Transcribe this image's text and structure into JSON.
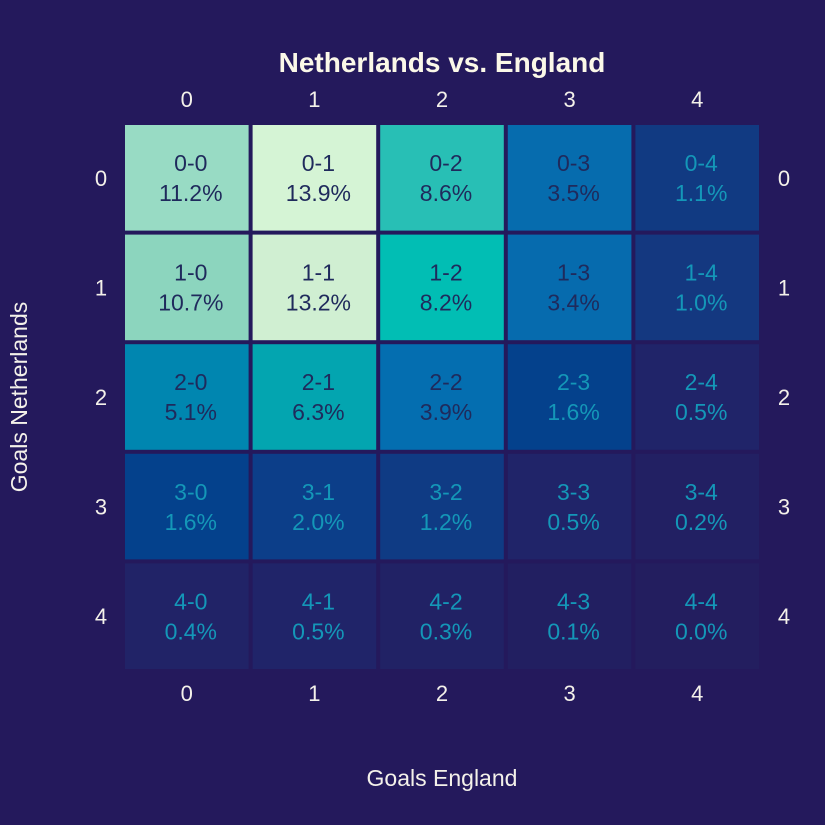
{
  "colors": {
    "background": "#24195c",
    "text_light": "#f4f1ea",
    "text_dark": "#1f2a5c",
    "text_faint": "#1497b8"
  },
  "chart_data": {
    "type": "heatmap",
    "title": "Netherlands vs. England",
    "xlabel": "Goals England",
    "ylabel": "Goals Netherlands",
    "x_categories": [
      "0",
      "1",
      "2",
      "3",
      "4"
    ],
    "y_categories": [
      "0",
      "1",
      "2",
      "3",
      "4"
    ],
    "x_ticks_position": "top and bottom",
    "y_ticks_position": "left and right",
    "grid": false,
    "colormap": "YlGnBu (dark background)",
    "cells": [
      [
        {
          "label": "0-0",
          "value": 11.2
        },
        {
          "label": "0-1",
          "value": 13.9
        },
        {
          "label": "0-2",
          "value": 8.6
        },
        {
          "label": "0-3",
          "value": 3.5
        },
        {
          "label": "0-4",
          "value": 1.1
        }
      ],
      [
        {
          "label": "1-0",
          "value": 10.7
        },
        {
          "label": "1-1",
          "value": 13.2
        },
        {
          "label": "1-2",
          "value": 8.2
        },
        {
          "label": "1-3",
          "value": 3.4
        },
        {
          "label": "1-4",
          "value": 1.0
        }
      ],
      [
        {
          "label": "2-0",
          "value": 5.1
        },
        {
          "label": "2-1",
          "value": 6.3
        },
        {
          "label": "2-2",
          "value": 3.9
        },
        {
          "label": "2-3",
          "value": 1.6
        },
        {
          "label": "2-4",
          "value": 0.5
        }
      ],
      [
        {
          "label": "3-0",
          "value": 1.6
        },
        {
          "label": "3-1",
          "value": 2.0
        },
        {
          "label": "3-2",
          "value": 1.2
        },
        {
          "label": "3-3",
          "value": 0.5
        },
        {
          "label": "3-4",
          "value": 0.2
        }
      ],
      [
        {
          "label": "4-0",
          "value": 0.4
        },
        {
          "label": "4-1",
          "value": 0.5
        },
        {
          "label": "4-2",
          "value": 0.3
        },
        {
          "label": "4-3",
          "value": 0.1
        },
        {
          "label": "4-4",
          "value": 0.0
        }
      ]
    ],
    "value_format": "{value}%"
  }
}
